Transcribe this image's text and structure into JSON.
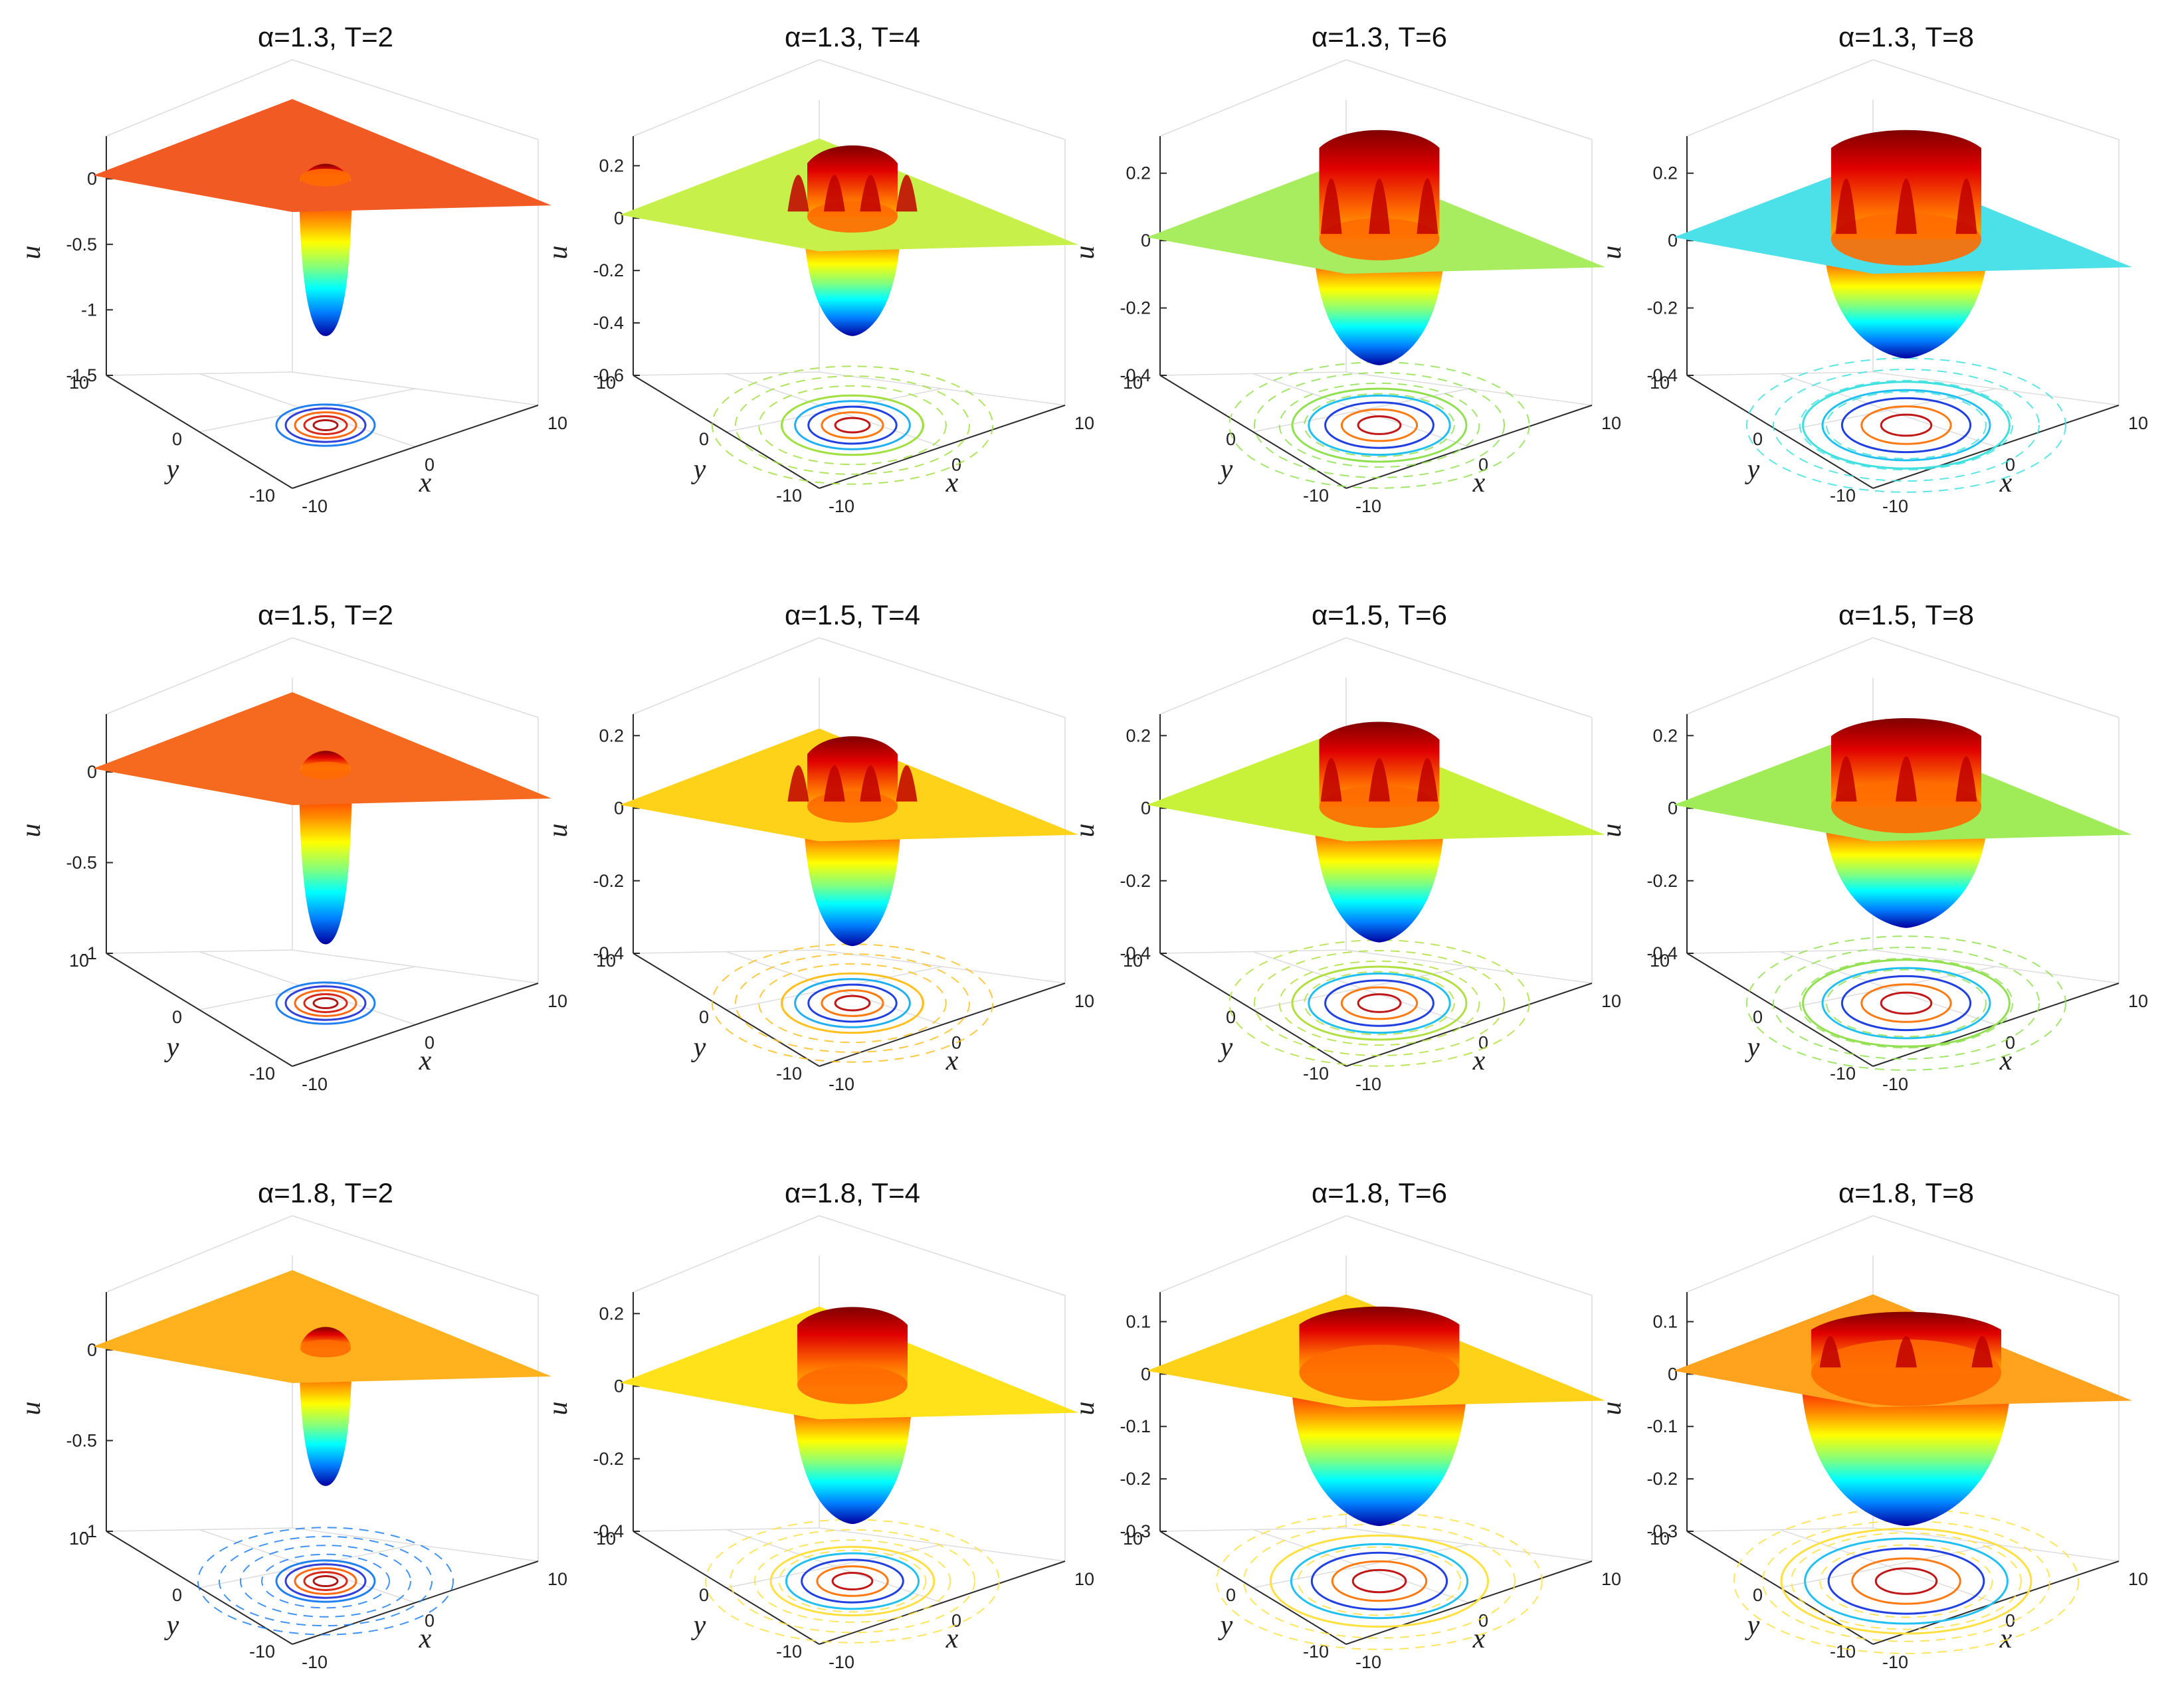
{
  "chart_data": [
    {
      "type": "surface",
      "title": "α=1.3, T=2",
      "alpha": 1.3,
      "T": 2,
      "zlim": [
        -1.5,
        0.3
      ],
      "zticks": [
        0,
        -0.5,
        -1,
        -1.5
      ],
      "zlabel": "u",
      "xlabel": "x",
      "ylabel": "y",
      "xticks": [
        -10,
        0,
        10
      ],
      "yticks": [
        -10,
        0,
        10
      ],
      "plane_color": "#f25a23",
      "peak": 0.12,
      "dip": -1.2,
      "ring_radius": 0,
      "extra_peaks": 0,
      "contours": [
        "#b01818",
        "#d8281a",
        "#ff6a12",
        "#3040d8",
        "#2080f0"
      ],
      "outer_contours": false
    },
    {
      "type": "surface",
      "title": "α=1.3, T=4",
      "alpha": 1.3,
      "T": 4,
      "zlim": [
        -0.6,
        0.3
      ],
      "zticks": [
        0.2,
        0,
        -0.2,
        -0.4,
        -0.6
      ],
      "zlabel": "u",
      "xlabel": "x",
      "ylabel": "y",
      "xticks": [
        -10,
        0,
        10
      ],
      "yticks": [
        -10,
        0,
        10
      ],
      "plane_color": "#c8f04a",
      "peak": 0.28,
      "dip": -0.45,
      "ring_radius": 0.2,
      "extra_peaks": 4,
      "contours": [
        "#c01818",
        "#ff7a12",
        "#2040e0",
        "#20b0f0",
        "#a0e040"
      ],
      "outer_contours": true
    },
    {
      "type": "surface",
      "title": "α=1.3, T=6",
      "alpha": 1.3,
      "T": 6,
      "zlim": [
        -0.4,
        0.3
      ],
      "zticks": [
        0.2,
        0,
        -0.2,
        -0.4
      ],
      "zlabel": "u",
      "xlabel": "x",
      "ylabel": "y",
      "xticks": [
        -10,
        0,
        10
      ],
      "yticks": [
        -10,
        0,
        10
      ],
      "plane_color": "#a8ec60",
      "peak": 0.33,
      "dip": -0.37,
      "ring_radius": 0.35,
      "extra_peaks": 3,
      "contours": [
        "#c01818",
        "#ff7a12",
        "#2040e0",
        "#20c0f0",
        "#90e050"
      ],
      "outer_contours": true
    },
    {
      "type": "surface",
      "title": "α=1.3, T=8",
      "alpha": 1.3,
      "T": 8,
      "zlim": [
        -0.4,
        0.3
      ],
      "zticks": [
        0.2,
        0,
        -0.2,
        -0.4
      ],
      "zlabel": "u",
      "xlabel": "x",
      "ylabel": "y",
      "xticks": [
        -10,
        0,
        10
      ],
      "yticks": [
        -10,
        0,
        10
      ],
      "plane_color": "#4ce0e8",
      "peak": 0.33,
      "dip": -0.35,
      "ring_radius": 0.5,
      "extra_peaks": 3,
      "contours": [
        "#c01818",
        "#ff7a12",
        "#2040e0",
        "#20c0f0",
        "#40e0e0"
      ],
      "outer_contours": true
    },
    {
      "type": "surface",
      "title": "α=1.5, T=2",
      "alpha": 1.5,
      "T": 2,
      "zlim": [
        -1,
        0.3
      ],
      "zticks": [
        0,
        -0.5,
        -1
      ],
      "zlabel": "u",
      "xlabel": "x",
      "ylabel": "y",
      "xticks": [
        -10,
        0,
        10
      ],
      "yticks": [
        -10,
        0,
        10
      ],
      "plane_color": "#f56a1e",
      "peak": 0.12,
      "dip": -0.95,
      "ring_radius": 0,
      "extra_peaks": 0,
      "contours": [
        "#b01818",
        "#d8281a",
        "#ff6a12",
        "#3040d8",
        "#2080f0"
      ],
      "outer_contours": false
    },
    {
      "type": "surface",
      "title": "α=1.5, T=4",
      "alpha": 1.5,
      "T": 4,
      "zlim": [
        -0.4,
        0.25
      ],
      "zticks": [
        0.2,
        0,
        -0.2,
        -0.4
      ],
      "zlabel": "u",
      "xlabel": "x",
      "ylabel": "y",
      "xticks": [
        -10,
        0,
        10
      ],
      "yticks": [
        -10,
        0,
        10
      ],
      "plane_color": "#ffd21a",
      "peak": 0.2,
      "dip": -0.38,
      "ring_radius": 0.2,
      "extra_peaks": 4,
      "contours": [
        "#c01818",
        "#ff7a12",
        "#2040e0",
        "#20b0f0",
        "#ffc020"
      ],
      "outer_contours": true
    },
    {
      "type": "surface",
      "title": "α=1.5, T=6",
      "alpha": 1.5,
      "T": 6,
      "zlim": [
        -0.4,
        0.25
      ],
      "zticks": [
        0.2,
        0,
        -0.2,
        -0.4
      ],
      "zlabel": "u",
      "xlabel": "x",
      "ylabel": "y",
      "xticks": [
        -10,
        0,
        10
      ],
      "yticks": [
        -10,
        0,
        10
      ],
      "plane_color": "#c8f23a",
      "peak": 0.24,
      "dip": -0.37,
      "ring_radius": 0.35,
      "extra_peaks": 3,
      "contours": [
        "#c01818",
        "#ff7a12",
        "#2040e0",
        "#20c0f0",
        "#b0e040"
      ],
      "outer_contours": true
    },
    {
      "type": "surface",
      "title": "α=1.5, T=8",
      "alpha": 1.5,
      "T": 8,
      "zlim": [
        -0.4,
        0.25
      ],
      "zticks": [
        0.2,
        0,
        -0.2,
        -0.4
      ],
      "zlabel": "u",
      "xlabel": "x",
      "ylabel": "y",
      "xticks": [
        -10,
        0,
        10
      ],
      "yticks": [
        -10,
        0,
        10
      ],
      "plane_color": "#a0ec58",
      "peak": 0.25,
      "dip": -0.33,
      "ring_radius": 0.5,
      "extra_peaks": 3,
      "contours": [
        "#c01818",
        "#ff7a12",
        "#2040e0",
        "#20c0f0",
        "#90e050"
      ],
      "outer_contours": true
    },
    {
      "type": "surface",
      "title": "α=1.8, T=2",
      "alpha": 1.8,
      "T": 2,
      "zlim": [
        -1,
        0.3
      ],
      "zticks": [
        0,
        -0.5,
        -1
      ],
      "zlabel": "u",
      "xlabel": "x",
      "ylabel": "y",
      "xticks": [
        -10,
        0,
        10
      ],
      "yticks": [
        -10,
        0,
        10
      ],
      "plane_color": "#ffb21e",
      "peak": 0.13,
      "dip": -0.75,
      "ring_radius": 0,
      "extra_peaks": 0,
      "contours": [
        "#b01818",
        "#d8281a",
        "#ff6a12",
        "#3040d8",
        "#2080f0"
      ],
      "outer_contours": true
    },
    {
      "type": "surface",
      "title": "α=1.8, T=4",
      "alpha": 1.8,
      "T": 4,
      "zlim": [
        -0.4,
        0.25
      ],
      "zticks": [
        0.2,
        0,
        -0.2,
        -0.4
      ],
      "zlabel": "u",
      "xlabel": "x",
      "ylabel": "y",
      "xticks": [
        -10,
        0,
        10
      ],
      "yticks": [
        -10,
        0,
        10
      ],
      "plane_color": "#ffe21a",
      "peak": 0.22,
      "dip": -0.38,
      "ring_radius": 0.3,
      "extra_peaks": 0,
      "contours": [
        "#c01818",
        "#ff7a12",
        "#2040e0",
        "#20c0f0",
        "#ffe040"
      ],
      "outer_contours": true
    },
    {
      "type": "surface",
      "title": "α=1.8, T=6",
      "alpha": 1.8,
      "T": 6,
      "zlim": [
        -0.3,
        0.15
      ],
      "zticks": [
        0.1,
        0,
        -0.1,
        -0.2,
        -0.3
      ],
      "zlabel": "u",
      "xlabel": "x",
      "ylabel": "y",
      "xticks": [
        -10,
        0,
        10
      ],
      "yticks": [
        -10,
        0,
        10
      ],
      "plane_color": "#ffd21a",
      "peak": 0.13,
      "dip": -0.29,
      "ring_radius": 0.55,
      "extra_peaks": 0,
      "contours": [
        "#c01818",
        "#ff7a12",
        "#2040e0",
        "#20c0f0",
        "#ffe040"
      ],
      "outer_contours": true
    },
    {
      "type": "surface",
      "title": "α=1.8, T=8",
      "alpha": 1.8,
      "T": 8,
      "zlim": [
        -0.3,
        0.15
      ],
      "zticks": [
        0.1,
        0,
        -0.1,
        -0.2,
        -0.3
      ],
      "zlabel": "u",
      "xlabel": "x",
      "ylabel": "y",
      "xticks": [
        -10,
        0,
        10
      ],
      "yticks": [
        -10,
        0,
        10
      ],
      "plane_color": "#ffa21e",
      "peak": 0.12,
      "dip": -0.29,
      "ring_radius": 0.7,
      "extra_peaks": 3,
      "contours": [
        "#c01818",
        "#ff7a12",
        "#2040e0",
        "#20c0f0",
        "#ffe040"
      ],
      "outer_contours": true
    }
  ]
}
